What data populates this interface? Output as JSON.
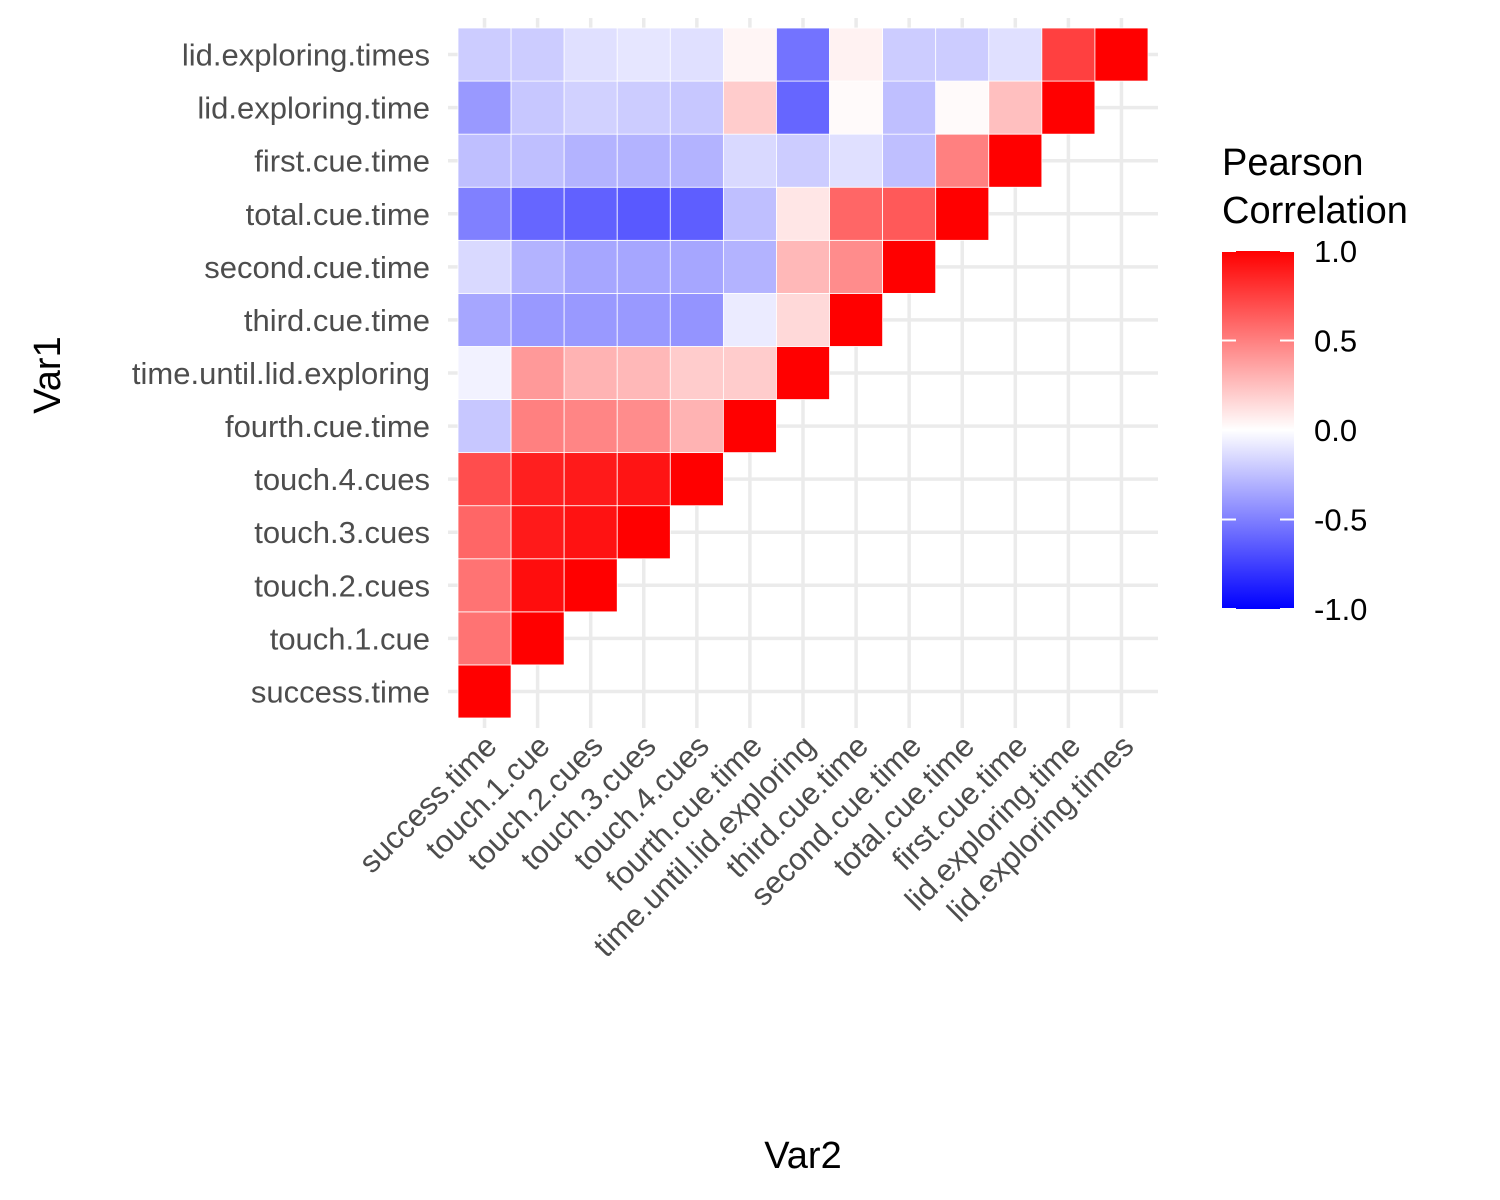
{
  "chart_data": {
    "type": "heatmap",
    "title": "",
    "xlabel": "Var2",
    "ylabel": "Var1",
    "variables": [
      "success.time",
      "touch.1.cue",
      "touch.2.cues",
      "touch.3.cues",
      "touch.4.cues",
      "fourth.cue.time",
      "time.until.lid.exploring",
      "third.cue.time",
      "second.cue.time",
      "total.cue.time",
      "first.cue.time",
      "lid.exploring.time",
      "lid.exploring.times"
    ],
    "matrix_lower_triangle": [
      [
        1.0
      ],
      [
        0.55,
        1.0
      ],
      [
        0.55,
        0.95,
        1.0
      ],
      [
        0.6,
        0.9,
        0.93,
        1.0
      ],
      [
        0.7,
        0.88,
        0.9,
        0.92,
        1.0
      ],
      [
        -0.22,
        0.5,
        0.48,
        0.45,
        0.3,
        1.0
      ],
      [
        -0.05,
        0.4,
        0.3,
        0.28,
        0.2,
        0.2,
        1.0
      ],
      [
        -0.35,
        -0.4,
        -0.4,
        -0.4,
        -0.42,
        -0.08,
        0.15,
        1.0
      ],
      [
        -0.15,
        -0.3,
        -0.35,
        -0.35,
        -0.35,
        -0.3,
        0.28,
        0.45,
        1.0
      ],
      [
        -0.5,
        -0.6,
        -0.62,
        -0.65,
        -0.63,
        -0.25,
        0.1,
        0.6,
        0.65,
        1.0
      ],
      [
        -0.25,
        -0.25,
        -0.3,
        -0.3,
        -0.3,
        -0.15,
        -0.2,
        -0.12,
        -0.25,
        0.5,
        1.0
      ],
      [
        -0.4,
        -0.22,
        -0.18,
        -0.2,
        -0.22,
        0.2,
        -0.6,
        0.02,
        -0.25,
        0.02,
        0.25,
        1.0
      ],
      [
        -0.2,
        -0.2,
        -0.12,
        -0.1,
        -0.12,
        0.04,
        -0.55,
        0.05,
        -0.2,
        -0.2,
        -0.12,
        0.75,
        1.0
      ]
    ],
    "legend": {
      "title_line1": "Pearson",
      "title_line2": "Correlation",
      "ticks": [
        "1.0",
        "0.5",
        "0.0",
        "-0.5",
        "-1.0"
      ],
      "tick_values": [
        1.0,
        0.5,
        0.0,
        -0.5,
        -1.0
      ],
      "limits": [
        -1,
        1
      ],
      "placement": "right"
    },
    "colors": {
      "low": "#0000ff",
      "mid": "#ffffff",
      "high": "#ff0000",
      "grid": "#ebebeb"
    },
    "grid": true
  }
}
